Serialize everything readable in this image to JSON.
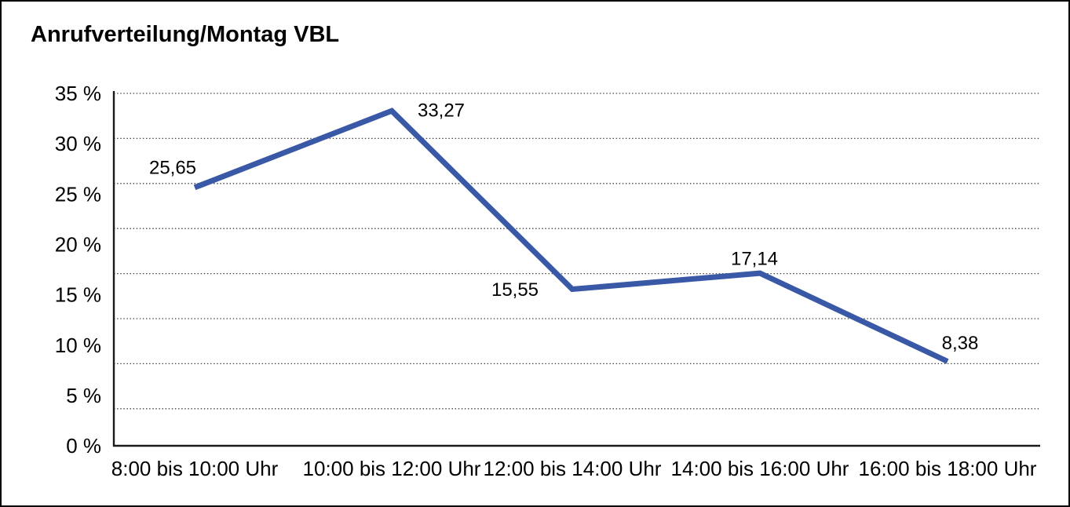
{
  "title": "Anrufverteilung/Montag VBL",
  "chart_data": {
    "type": "line",
    "title": "Anrufverteilung/Montag VBL",
    "categories": [
      "8:00 bis 10:00 Uhr",
      "10:00 bis 12:00 Uhr",
      "12:00 bis 14:00 Uhr",
      "14:00 bis 16:00 Uhr",
      "16:00 bis 18:00 Uhr"
    ],
    "values": [
      25.65,
      33.27,
      15.55,
      17.14,
      8.38
    ],
    "value_labels": [
      "25,65",
      "33,27",
      "15,55",
      "17,14",
      "8,38"
    ],
    "y_tick_values": [
      35,
      30,
      25,
      20,
      15,
      10,
      5,
      0
    ],
    "y_tick_labels": [
      "35 %",
      "30 %",
      "25 %",
      "20 %",
      "15 %",
      "10 %",
      "5 %",
      "0 %"
    ],
    "ylim": [
      0,
      35
    ],
    "xlabel": "",
    "ylabel": "",
    "legend": "none",
    "grid": "horizontal-dotted",
    "line_color": "#3959A7",
    "axis_color": "#1a1a1a",
    "gridline_color": "#444444",
    "text_color": "#000000"
  }
}
